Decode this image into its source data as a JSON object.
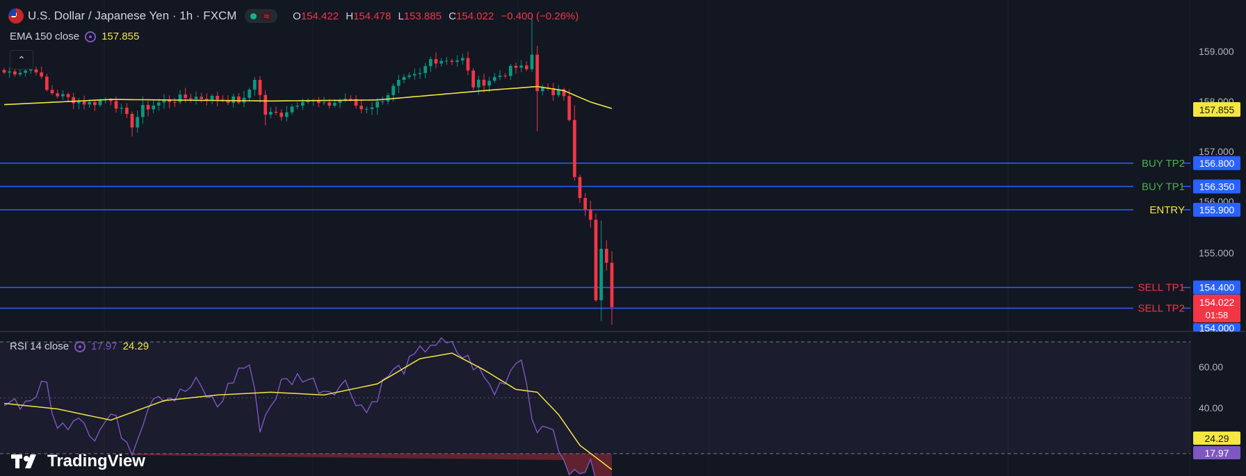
{
  "header": {
    "symbol": "U.S. Dollar / Japanese Yen · 1h · FXCM",
    "ohlc": {
      "o_label": "O",
      "o": "154.422",
      "h_label": "H",
      "h": "154.478",
      "l_label": "L",
      "l": "153.885",
      "c_label": "C",
      "c": "154.022",
      "change": "−0.400 (−0.26%)"
    }
  },
  "ema_legend": {
    "label": "EMA 150 close",
    "value": "157.855"
  },
  "rsi_legend": {
    "label": "RSI 14 close",
    "rsi_value": "17.97",
    "ma_value": "24.29"
  },
  "price_scale": {
    "ticks": [
      "159.000",
      "158.000",
      "157.000",
      "156.000",
      "155.000"
    ],
    "ema_tag": "157.855",
    "current": {
      "price": "154.022",
      "countdown": "01:58"
    },
    "partial_tag": "154.000"
  },
  "rsi_scale": {
    "ticks": [
      "60.00",
      "40.00"
    ],
    "ma_tag": "24.29",
    "rsi_tag": "17.97"
  },
  "levels": [
    {
      "name": "BUY TP2",
      "price": 156.8,
      "tag": "156.800",
      "color": "#4caf50"
    },
    {
      "name": "BUY TP1",
      "price": 156.35,
      "tag": "156.350",
      "color": "#4caf50"
    },
    {
      "name": "ENTRY",
      "price": 155.9,
      "tag": "155.900",
      "color": "#f5e642"
    },
    {
      "name": "SELL TP1",
      "price": 154.4,
      "tag": "154.400",
      "color": "#f23645"
    },
    {
      "name": "SELL TP2",
      "price": 154.0,
      "tag": "",
      "color": "#f23645"
    }
  ],
  "colors": {
    "up": "#089981",
    "down": "#f23645",
    "ema": "#f5e642",
    "rsi": "#7e57c2",
    "rsi_ma": "#f5e642",
    "level_line": "#2962ff",
    "bg": "#131722"
  },
  "branding": {
    "logo_text": "TradingView"
  },
  "chart_data": {
    "type": "candlestick",
    "price_range": [
      153.55,
      159.95
    ],
    "rsi_range": [
      22,
      73
    ],
    "rsi_bands": [
      30,
      50,
      70
    ],
    "candle_count": 115,
    "close_anchors": [
      [
        0,
        158.55
      ],
      [
        6,
        158.62
      ],
      [
        8,
        158.2
      ],
      [
        12,
        158.05
      ],
      [
        16,
        157.95
      ],
      [
        20,
        158.05
      ],
      [
        24,
        157.55
      ],
      [
        26,
        157.85
      ],
      [
        30,
        158.0
      ],
      [
        35,
        158.08
      ],
      [
        40,
        158.05
      ],
      [
        45,
        158.0
      ],
      [
        47,
        158.45
      ],
      [
        49,
        157.75
      ],
      [
        52,
        157.75
      ],
      [
        56,
        158.05
      ],
      [
        60,
        157.9
      ],
      [
        64,
        158.05
      ],
      [
        67,
        157.85
      ],
      [
        70,
        157.95
      ],
      [
        74,
        158.35
      ],
      [
        78,
        158.5
      ],
      [
        80,
        158.8
      ],
      [
        83,
        158.8
      ],
      [
        86,
        158.8
      ],
      [
        88,
        158.3
      ],
      [
        92,
        158.45
      ],
      [
        96,
        158.65
      ],
      [
        98,
        158.6
      ],
      [
        99,
        158.9
      ],
      [
        100,
        158.25
      ],
      [
        103,
        158.15
      ],
      [
        104,
        158.3
      ],
      [
        105,
        158.15
      ],
      [
        106,
        157.6
      ],
      [
        107,
        156.5
      ],
      [
        108,
        156.1
      ],
      [
        109,
        155.85
      ],
      [
        110,
        155.75
      ],
      [
        111,
        154.1
      ],
      [
        112,
        155.2
      ],
      [
        113,
        154.95
      ],
      [
        114,
        154.02
      ]
    ],
    "ema_anchors": [
      [
        0,
        157.93
      ],
      [
        20,
        158.03
      ],
      [
        50,
        158.0
      ],
      [
        70,
        158.02
      ],
      [
        90,
        158.2
      ],
      [
        100,
        158.28
      ],
      [
        105,
        158.2
      ],
      [
        110,
        157.98
      ],
      [
        114,
        157.855
      ]
    ],
    "rsi_anchors": [
      [
        0,
        50
      ],
      [
        4,
        48
      ],
      [
        8,
        55
      ],
      [
        10,
        38
      ],
      [
        14,
        45
      ],
      [
        17,
        36
      ],
      [
        20,
        44
      ],
      [
        24,
        32
      ],
      [
        28,
        52
      ],
      [
        32,
        50
      ],
      [
        36,
        55
      ],
      [
        40,
        47
      ],
      [
        44,
        60
      ],
      [
        46,
        62
      ],
      [
        48,
        40
      ],
      [
        52,
        55
      ],
      [
        56,
        58
      ],
      [
        60,
        53
      ],
      [
        64,
        55
      ],
      [
        68,
        45
      ],
      [
        72,
        58
      ],
      [
        76,
        62
      ],
      [
        80,
        70
      ],
      [
        84,
        68
      ],
      [
        88,
        62
      ],
      [
        92,
        52
      ],
      [
        95,
        60
      ],
      [
        97,
        66
      ],
      [
        99,
        44
      ],
      [
        101,
        37
      ],
      [
        103,
        40
      ],
      [
        105,
        25
      ],
      [
        108,
        22
      ],
      [
        110,
        26
      ],
      [
        112,
        20
      ],
      [
        114,
        17.97
      ]
    ],
    "rsi_ma_anchors": [
      [
        0,
        48
      ],
      [
        10,
        46
      ],
      [
        20,
        42
      ],
      [
        30,
        49
      ],
      [
        40,
        51
      ],
      [
        50,
        52
      ],
      [
        60,
        51
      ],
      [
        70,
        55
      ],
      [
        78,
        64
      ],
      [
        84,
        66
      ],
      [
        90,
        60
      ],
      [
        96,
        53
      ],
      [
        100,
        52
      ],
      [
        104,
        44
      ],
      [
        108,
        33
      ],
      [
        114,
        24.29
      ]
    ]
  }
}
